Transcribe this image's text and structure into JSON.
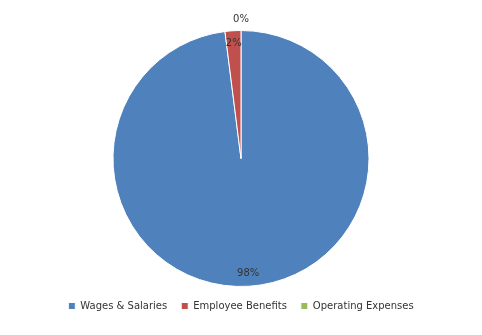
{
  "chart_data": {
    "type": "pie",
    "categories": [
      "Wages & Salaries",
      "Employee Benefits",
      "Operating Expenses"
    ],
    "values": [
      98,
      2,
      0
    ],
    "value_labels": [
      "98%",
      "2%",
      "0%"
    ],
    "colors": [
      "#4f81bd",
      "#c0504d",
      "#9bbb59"
    ],
    "data_labels": true,
    "legend": "bottom"
  }
}
